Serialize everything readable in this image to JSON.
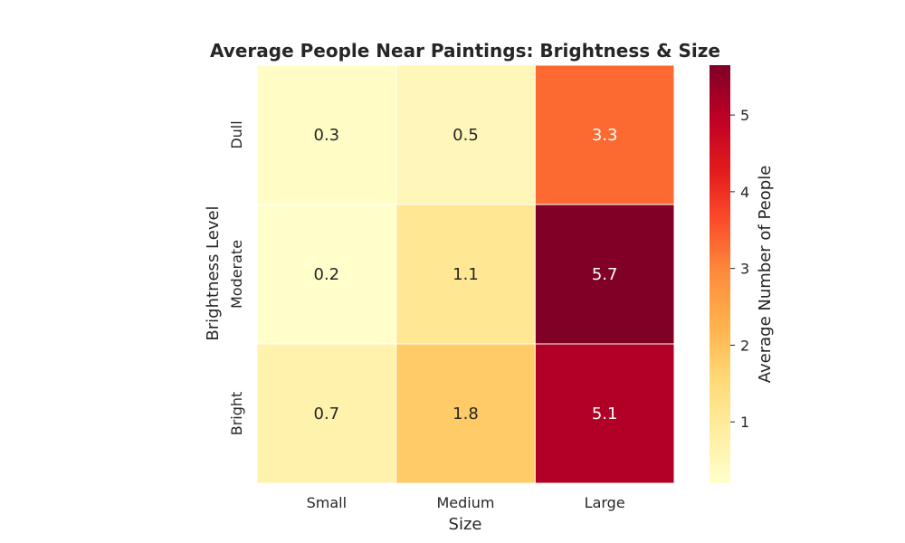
{
  "chart_data": {
    "type": "heatmap",
    "title": "Average People Near Paintings: Brightness & Size",
    "xlabel": "Size",
    "ylabel": "Brightness Level",
    "x_categories": [
      "Small",
      "Medium",
      "Large"
    ],
    "y_categories": [
      "Dull",
      "Moderate",
      "Bright"
    ],
    "values": [
      [
        0.3,
        0.5,
        3.3
      ],
      [
        0.2,
        1.1,
        5.7
      ],
      [
        0.7,
        1.8,
        5.1
      ]
    ],
    "colorbar": {
      "label": "Average Number of People",
      "ticks": [
        "1",
        "2",
        "3",
        "4",
        "5"
      ],
      "range": [
        0.2,
        5.65
      ],
      "colormap": "YlOrRd"
    }
  }
}
